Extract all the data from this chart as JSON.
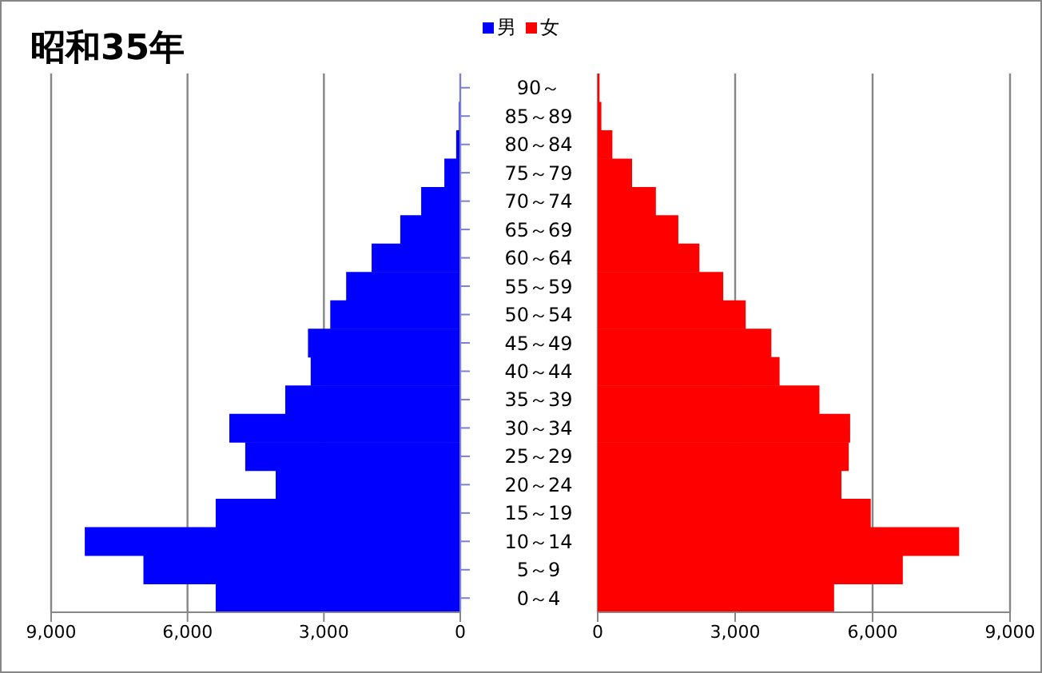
{
  "chart_data": [
    {
      "type": "bar",
      "orientation": "horizontal",
      "title": "昭和35年",
      "legend": "top",
      "grid": "x",
      "tick_labels": "xy",
      "categories": [
        "90～",
        "85～89",
        "80～84",
        "75～79",
        "70～74",
        "65～69",
        "60～64",
        "55～59",
        "50～54",
        "45～49",
        "40～44",
        "35～39",
        "30～34",
        "25～29",
        "20～24",
        "15～19",
        "10～14",
        "5～9",
        "0～4"
      ],
      "series": [
        {
          "name": "男",
          "color": "#0000ff",
          "values": [
            10,
            30,
            90,
            350,
            860,
            1320,
            1950,
            2510,
            2860,
            3350,
            3290,
            3850,
            5080,
            4730,
            4060,
            5380,
            8260,
            6970,
            5380
          ]
        }
      ],
      "xlim": [
        9000,
        0
      ],
      "xticks": [
        {
          "value": 9000,
          "label": "9,000"
        },
        {
          "value": 6000,
          "label": "6,000"
        },
        {
          "value": 3000,
          "label": "3,000"
        },
        0
      ]
    },
    {
      "type": "bar",
      "orientation": "horizontal",
      "legend": "top",
      "grid": "x",
      "tick_labels": "x",
      "categories": [
        null,
        null,
        null,
        null,
        null,
        null,
        null,
        null,
        null,
        null,
        null,
        null,
        null,
        null,
        null,
        null,
        null,
        null,
        null
      ],
      "series": [
        {
          "name": "女",
          "color": "#ff0000",
          "values": [
            40,
            80,
            320,
            750,
            1270,
            1760,
            2220,
            2740,
            3230,
            3790,
            3970,
            4840,
            5510,
            5480,
            5320,
            5960,
            7890,
            6660,
            5160
          ]
        }
      ],
      "xlim": [
        0,
        9000
      ],
      "xticks": [
        0,
        {
          "value": 3000,
          "label": "3,000"
        },
        {
          "value": 6000,
          "label": "6,000"
        },
        {
          "value": 9000,
          "label": "9,000"
        }
      ]
    }
  ]
}
